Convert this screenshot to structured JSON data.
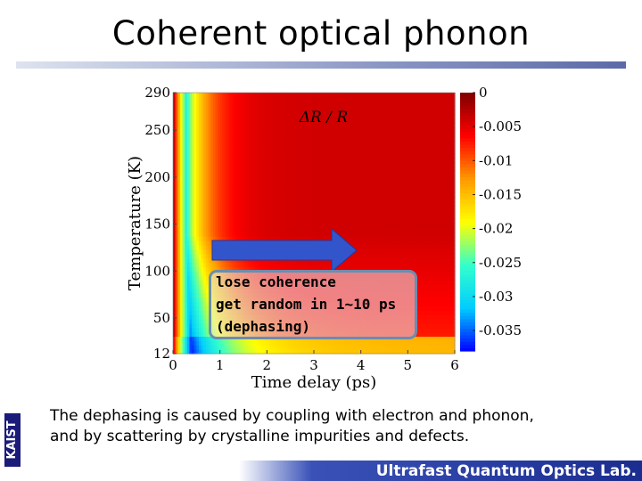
{
  "slide": {
    "title": "Coherent optical phonon",
    "side_tag": "KAIST",
    "caption_line1": "The dephasing is caused by coupling with electron and phonon,",
    "caption_line2": "and by scattering by crystalline impurities and defects.",
    "lab_name": "Ultrafast Quantum Optics Lab."
  },
  "annotation": {
    "line1": "lose coherence",
    "line2": "get random in 1~10 ps",
    "line3": "(dephasing)"
  },
  "chart_data": {
    "type": "heatmap",
    "title": "ΔR / R",
    "xlabel": "Time delay (ps)",
    "ylabel": "Temperature (K)",
    "xlim": [
      0,
      6
    ],
    "ylim": [
      12,
      290
    ],
    "x_ticks": [
      "0",
      "1",
      "2",
      "3",
      "4",
      "5",
      "6"
    ],
    "y_ticks": [
      "12",
      "50",
      "100",
      "150",
      "200",
      "250",
      "290"
    ],
    "colorbar": {
      "range": [
        -0.038,
        0
      ],
      "ticks": [
        "0",
        "-0.005",
        "-0.01",
        "-0.015",
        "-0.02",
        "-0.025",
        "-0.03",
        "-0.035"
      ],
      "colors": [
        "#0000ff",
        "#00ccff",
        "#33ffcc",
        "#ffff00",
        "#ff9900",
        "#ff0000",
        "#800000"
      ]
    },
    "trend": "Signal minimum (about -0.035) near 0.2-0.5 ps at all temperatures, relaxing toward -0.005 by 6 ps; stronger negative signal at low temperature.",
    "arrow_color": "#3355cc"
  }
}
